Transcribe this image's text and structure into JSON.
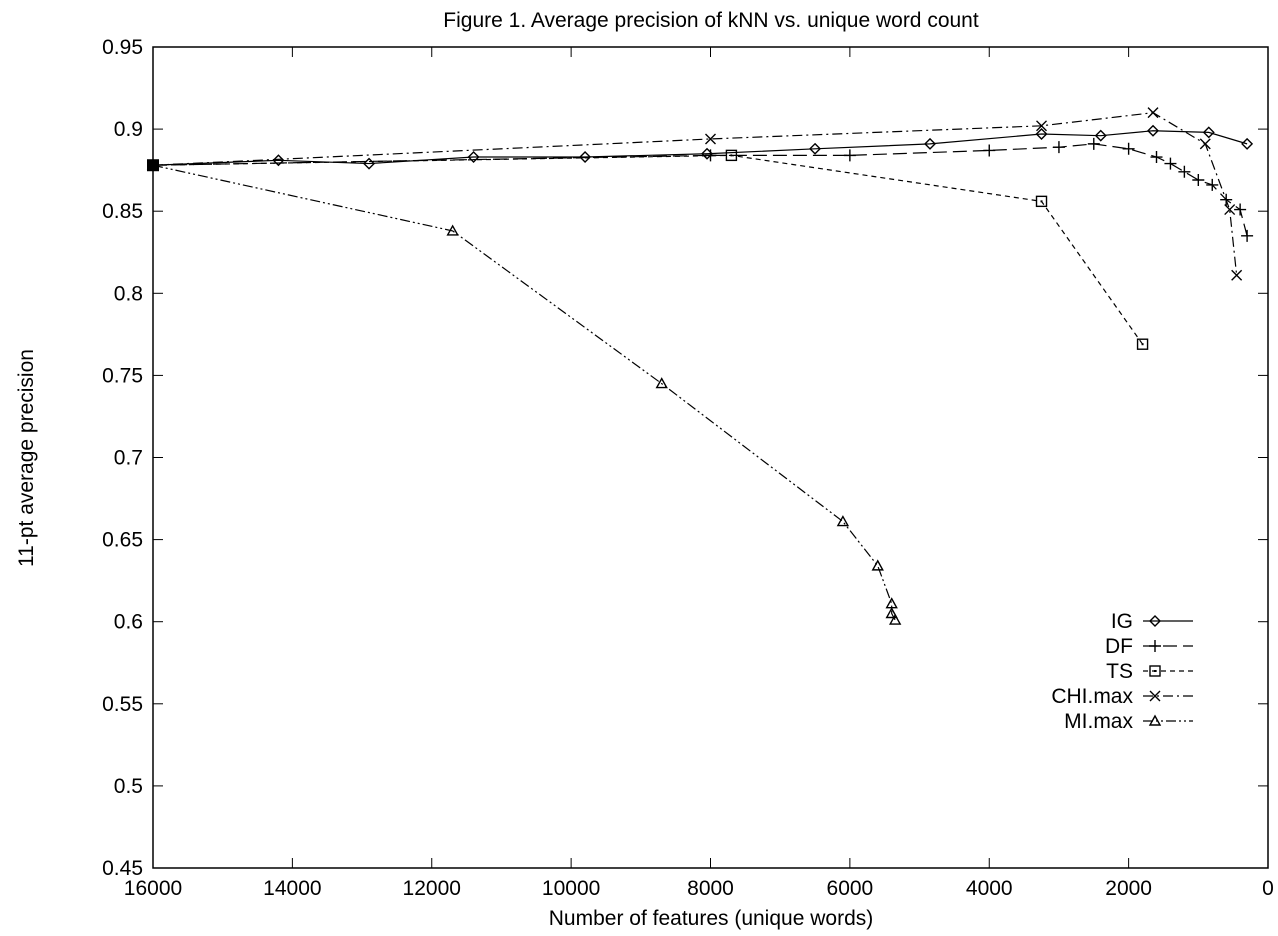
{
  "chart_data": {
    "type": "line",
    "title": "Figure 1. Average precision of kNN vs. unique word count",
    "xlabel": "Number of features (unique words)",
    "ylabel": "11-pt average precision",
    "xlim": [
      16000,
      0
    ],
    "ylim": [
      0.45,
      0.95
    ],
    "x_reversed": true,
    "xticks": [
      16000,
      14000,
      12000,
      10000,
      8000,
      6000,
      4000,
      2000,
      0
    ],
    "xtick_labels": [
      "16000",
      "14000",
      "12000",
      "10000",
      "8000",
      "6000",
      "4000",
      "2000",
      "0"
    ],
    "yticks": [
      0.45,
      0.5,
      0.55,
      0.6,
      0.65,
      0.7,
      0.75,
      0.8,
      0.85,
      0.9,
      0.95
    ],
    "ytick_labels": [
      "0.45",
      "0.5",
      "0.55",
      "0.6",
      "0.65",
      "0.7",
      "0.75",
      "0.8",
      "0.85",
      "0.9",
      "0.95"
    ],
    "grid": false,
    "legend_position": "bottom-right",
    "series": [
      {
        "name": "IG",
        "marker": "diamond",
        "dash": "solid",
        "x": [
          16000,
          14200,
          12900,
          11400,
          9800,
          8050,
          6500,
          4850,
          3250,
          2400,
          1650,
          850,
          300
        ],
        "y": [
          0.878,
          0.881,
          0.879,
          0.883,
          0.883,
          0.885,
          0.888,
          0.891,
          0.897,
          0.896,
          0.899,
          0.898,
          0.891
        ]
      },
      {
        "name": "DF",
        "marker": "plus",
        "dash": "longdash",
        "x": [
          16000,
          8000,
          6000,
          4000,
          3000,
          2500,
          2000,
          1600,
          1400,
          1200,
          1000,
          800,
          600,
          400,
          300
        ],
        "y": [
          0.878,
          0.884,
          0.884,
          0.887,
          0.889,
          0.891,
          0.888,
          0.883,
          0.879,
          0.874,
          0.869,
          0.866,
          0.857,
          0.851,
          0.835
        ]
      },
      {
        "name": "TS",
        "marker": "square",
        "dash": "shortdash",
        "x": [
          16000,
          7700,
          3250,
          1800
        ],
        "y": [
          0.878,
          0.884,
          0.856,
          0.769
        ]
      },
      {
        "name": "CHI.max",
        "marker": "cross",
        "dash": "dashdot",
        "x": [
          16000,
          8000,
          3250,
          1650,
          900,
          550,
          450
        ],
        "y": [
          0.878,
          0.894,
          0.902,
          0.91,
          0.891,
          0.851,
          0.811
        ]
      },
      {
        "name": "MI.max",
        "marker": "triangle",
        "dash": "dashdotdot",
        "x": [
          16000,
          11700,
          8700,
          6100,
          5600,
          5400,
          5400,
          5350
        ],
        "y": [
          0.878,
          0.838,
          0.745,
          0.661,
          0.634,
          0.611,
          0.605,
          0.601
        ]
      }
    ]
  }
}
